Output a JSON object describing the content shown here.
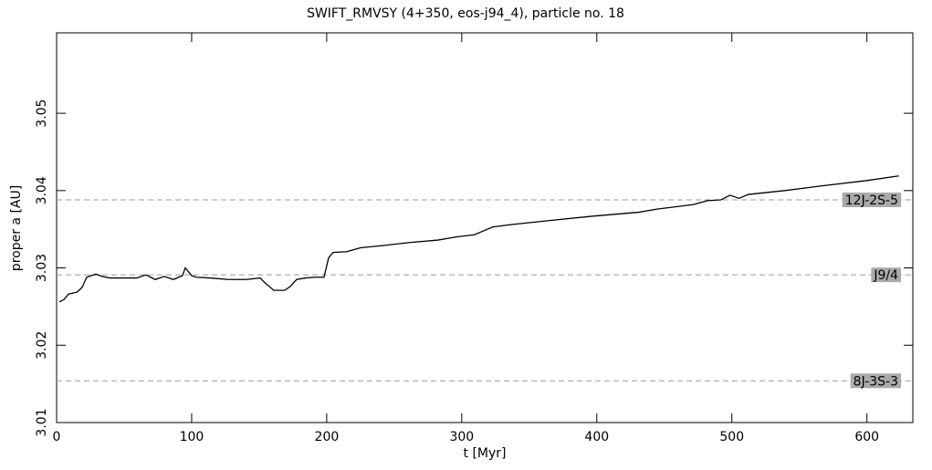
{
  "chart_data": {
    "type": "line",
    "title": "SWIFT_RMVSY (4+350, eos-j94_4), particle no. 18",
    "x_label": "t [Myr]",
    "y_label": "proper a [AU]",
    "xlim": [
      0,
      634
    ],
    "ylim": [
      3.01,
      3.0604
    ],
    "xticks": [
      0,
      100,
      200,
      300,
      400,
      500,
      600
    ],
    "yticks": [
      3.01,
      3.02,
      3.03,
      3.04,
      3.05
    ],
    "resonances": [
      {
        "name": "12J-2S-5",
        "value": 3.0388
      },
      {
        "name": "J9/4",
        "value": 3.0291
      },
      {
        "name": "8J-3S-3",
        "value": 3.0154
      }
    ],
    "series": [
      {
        "color": "#000000",
        "x": [
          2.0,
          5.4,
          8.8,
          15.5,
          18.9,
          22.3,
          25.7,
          29.1,
          33.8,
          39.2,
          45.9,
          52.7,
          59.5,
          66.2,
          73.0,
          79.7,
          86.5,
          93.2,
          95.3,
          100.0,
          103.4,
          113.5,
          127.0,
          140.5,
          150.7,
          154.1,
          160.8,
          168.9,
          173.0,
          177.7,
          184.5,
          191.2,
          198.0,
          201.4,
          204.7,
          214.9,
          225.0,
          241.9,
          262.2,
          282.4,
          295.9,
          309.5,
          323.0,
          336.5,
          363.5,
          397.3,
          431.1,
          444.6,
          471.6,
          481.8,
          491.9,
          498.6,
          505.4,
          512.2,
          539.2,
          566.2,
          600.0,
          623.6
        ],
        "values": [
          3.0256,
          3.0259,
          3.0266,
          3.0269,
          3.0275,
          3.0288,
          3.029,
          3.0292,
          3.0289,
          3.0287,
          3.0287,
          3.0287,
          3.0287,
          3.0291,
          3.0285,
          3.0289,
          3.0285,
          3.029,
          3.03,
          3.029,
          3.0288,
          3.0287,
          3.0285,
          3.0285,
          3.0287,
          3.0281,
          3.0271,
          3.0271,
          3.0276,
          3.0285,
          3.0287,
          3.0288,
          3.0288,
          3.0313,
          3.032,
          3.0321,
          3.0326,
          3.0329,
          3.0333,
          3.0336,
          3.034,
          3.0343,
          3.0353,
          3.0356,
          3.0361,
          3.0367,
          3.0372,
          3.0376,
          3.0382,
          3.0387,
          3.0388,
          3.0394,
          3.039,
          3.0395,
          3.04,
          3.0406,
          3.0413,
          3.0419
        ]
      }
    ]
  }
}
